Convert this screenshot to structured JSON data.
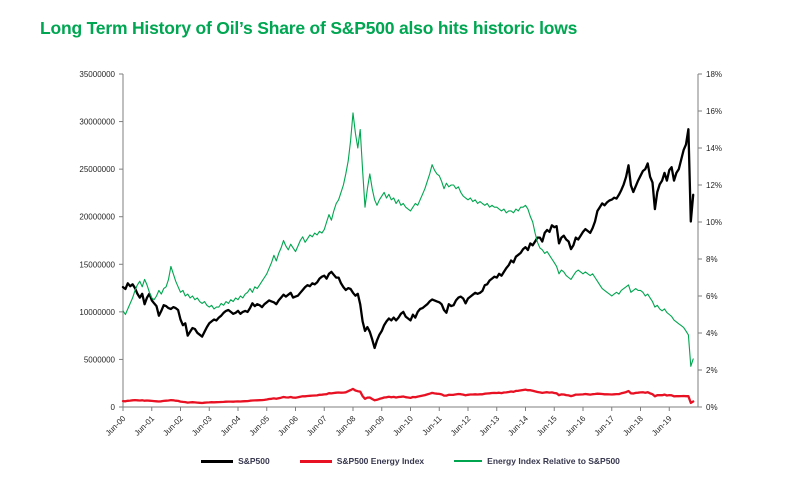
{
  "title": {
    "text": "Long Term History of Oil’s Share of S&P500 also hits historic lows",
    "color": "#00a651"
  },
  "chart_data": {
    "type": "line",
    "title": "Long Term History of Oil’s Share of S&P500 also hits historic lows",
    "x_tick_labels": [
      "Jun-00",
      "Jun-01",
      "Jun-02",
      "Jun-03",
      "Jun-04",
      "Jun-05",
      "Jun-06",
      "Jun-07",
      "Jun-08",
      "Jun-09",
      "Jun-10",
      "Jun-11",
      "Jun-12",
      "Jun-13",
      "Jun-14",
      "Jun-15",
      "Jun-16",
      "Jun-17",
      "Jun-18",
      "Jun-19"
    ],
    "x_frequency": "monthly",
    "x_slots": 240,
    "grid": false,
    "legend_position": "bottom",
    "left_axis": {
      "min": 0,
      "max": 35000000,
      "tick_step": 5000000,
      "tick_labels": [
        "0",
        "5000000",
        "10000000",
        "15000000",
        "20000000",
        "25000000",
        "30000000",
        "35000000"
      ]
    },
    "right_axis": {
      "min": 0,
      "max": 18,
      "tick_step": 2,
      "tick_labels": [
        "0%",
        "2%",
        "4%",
        "6%",
        "8%",
        "10%",
        "12%",
        "14%",
        "16%",
        "18%"
      ]
    },
    "series": [
      {
        "name": "S&P500",
        "axis": "left",
        "color": "#000000",
        "line_width": 2.3,
        "value_scale": 1000000,
        "values": [
          12.6,
          12.4,
          13.0,
          12.7,
          12.9,
          12.5,
          11.9,
          11.5,
          11.9,
          10.8,
          11.5,
          11.9,
          11.2,
          10.9,
          10.6,
          9.6,
          10.1,
          10.7,
          10.6,
          10.4,
          10.3,
          10.5,
          10.4,
          10.2,
          9.2,
          8.6,
          8.8,
          7.5,
          7.9,
          8.3,
          8.2,
          7.8,
          7.6,
          7.4,
          7.9,
          8.4,
          8.8,
          9.0,
          9.2,
          9.1,
          9.4,
          9.6,
          9.9,
          10.1,
          10.2,
          10.0,
          9.8,
          9.9,
          10.1,
          9.8,
          10.0,
          10.1,
          10.0,
          10.4,
          10.9,
          10.6,
          10.8,
          10.7,
          10.5,
          10.8,
          11.0,
          11.2,
          11.1,
          11.0,
          10.8,
          11.2,
          11.5,
          11.8,
          11.6,
          11.8,
          12.0,
          11.5,
          11.6,
          11.7,
          12.0,
          12.3,
          12.6,
          12.8,
          12.7,
          13.0,
          12.9,
          13.1,
          13.5,
          13.7,
          13.8,
          13.5,
          14.0,
          14.2,
          13.9,
          13.6,
          13.6,
          13.0,
          12.6,
          12.3,
          12.5,
          12.4,
          12.0,
          11.7,
          11.9,
          10.8,
          9.0,
          8.0,
          8.4,
          7.9,
          7.1,
          6.2,
          7.0,
          7.6,
          8.0,
          8.6,
          9.0,
          9.3,
          9.1,
          9.4,
          9.1,
          9.4,
          9.8,
          10.0,
          9.5,
          9.3,
          9.1,
          9.7,
          9.4,
          10.0,
          10.3,
          10.4,
          10.6,
          10.8,
          11.1,
          11.3,
          11.2,
          11.1,
          11.0,
          10.8,
          10.2,
          9.9,
          10.8,
          10.6,
          10.7,
          11.2,
          11.5,
          11.6,
          11.4,
          10.9,
          11.4,
          11.6,
          11.8,
          12.0,
          11.9,
          12.0,
          12.2,
          12.8,
          12.9,
          13.3,
          13.5,
          13.7,
          13.6,
          14.0,
          13.8,
          14.2,
          14.6,
          14.9,
          15.4,
          15.2,
          15.8,
          16.0,
          16.2,
          16.6,
          16.8,
          16.5,
          17.2,
          17.0,
          17.4,
          17.8,
          17.8,
          17.4,
          18.3,
          18.6,
          18.4,
          19.1,
          18.9,
          19.0,
          17.2,
          17.8,
          18.0,
          17.6,
          17.4,
          16.6,
          17.0,
          17.8,
          17.6,
          18.0,
          18.4,
          18.7,
          18.5,
          18.3,
          18.8,
          19.5,
          20.6,
          21.0,
          21.4,
          21.2,
          21.5,
          21.7,
          21.8,
          22.0,
          21.9,
          22.3,
          22.8,
          23.4,
          24.2,
          25.4,
          23.3,
          22.6,
          23.2,
          23.8,
          24.3,
          24.8,
          25.0,
          25.6,
          24.2,
          23.6,
          20.8,
          22.6,
          23.4,
          23.8,
          24.6,
          23.8,
          24.9,
          25.2,
          23.8,
          24.6,
          25.0,
          26.0,
          27.0,
          27.6,
          29.2,
          19.5,
          22.3
        ]
      },
      {
        "name": "S&P500 Energy Index",
        "axis": "left",
        "color": "#e81123",
        "line_width": 2.3,
        "value_scale": 1000000,
        "values": [
          0.62,
          0.6,
          0.65,
          0.67,
          0.7,
          0.72,
          0.7,
          0.68,
          0.7,
          0.66,
          0.68,
          0.66,
          0.64,
          0.62,
          0.6,
          0.58,
          0.6,
          0.64,
          0.66,
          0.68,
          0.72,
          0.7,
          0.66,
          0.64,
          0.57,
          0.54,
          0.52,
          0.46,
          0.48,
          0.5,
          0.48,
          0.46,
          0.44,
          0.42,
          0.45,
          0.47,
          0.48,
          0.5,
          0.49,
          0.5,
          0.51,
          0.53,
          0.54,
          0.56,
          0.57,
          0.57,
          0.56,
          0.58,
          0.59,
          0.58,
          0.6,
          0.61,
          0.62,
          0.66,
          0.68,
          0.69,
          0.7,
          0.71,
          0.72,
          0.75,
          0.79,
          0.84,
          0.86,
          0.9,
          0.86,
          0.92,
          0.98,
          1.05,
          1.01,
          1.0,
          1.05,
          0.99,
          0.98,
          1.02,
          1.08,
          1.12,
          1.12,
          1.16,
          1.18,
          1.2,
          1.21,
          1.22,
          1.28,
          1.29,
          1.32,
          1.35,
          1.45,
          1.43,
          1.47,
          1.5,
          1.52,
          1.5,
          1.51,
          1.55,
          1.66,
          1.78,
          1.9,
          1.73,
          1.66,
          1.62,
          1.15,
          0.86,
          0.99,
          1.0,
          0.84,
          0.7,
          0.76,
          0.85,
          0.91,
          1.0,
          1.02,
          1.07,
          1.02,
          1.06,
          1.0,
          1.05,
          1.07,
          1.1,
          1.03,
          1.0,
          0.96,
          1.05,
          1.03,
          1.09,
          1.15,
          1.2,
          1.25,
          1.32,
          1.4,
          1.48,
          1.43,
          1.4,
          1.38,
          1.32,
          1.2,
          1.2,
          1.28,
          1.27,
          1.28,
          1.32,
          1.37,
          1.35,
          1.3,
          1.23,
          1.28,
          1.31,
          1.31,
          1.34,
          1.31,
          1.33,
          1.34,
          1.4,
          1.42,
          1.44,
          1.47,
          1.48,
          1.47,
          1.5,
          1.46,
          1.52,
          1.53,
          1.58,
          1.63,
          1.6,
          1.69,
          1.7,
          1.75,
          1.79,
          1.83,
          1.77,
          1.77,
          1.7,
          1.64,
          1.58,
          1.53,
          1.48,
          1.52,
          1.56,
          1.51,
          1.53,
          1.47,
          1.44,
          1.24,
          1.32,
          1.31,
          1.25,
          1.22,
          1.15,
          1.21,
          1.3,
          1.3,
          1.31,
          1.32,
          1.37,
          1.33,
          1.3,
          1.35,
          1.37,
          1.4,
          1.39,
          1.37,
          1.34,
          1.33,
          1.32,
          1.31,
          1.34,
          1.36,
          1.36,
          1.44,
          1.5,
          1.57,
          1.68,
          1.44,
          1.42,
          1.48,
          1.5,
          1.53,
          1.54,
          1.5,
          1.56,
          1.43,
          1.35,
          1.12,
          1.24,
          1.24,
          1.24,
          1.3,
          1.21,
          1.25,
          1.23,
          1.12,
          1.13,
          1.13,
          1.15,
          1.16,
          1.13,
          1.14,
          0.43,
          0.58
        ]
      },
      {
        "name": "Energy Index Relative to S&P500",
        "axis": "right",
        "color": "#00a64f",
        "line_width": 1.1,
        "unit": "%",
        "values": [
          5.2,
          5.0,
          5.3,
          5.6,
          5.9,
          6.3,
          6.6,
          6.8,
          6.5,
          6.9,
          6.6,
          6.2,
          5.9,
          5.8,
          6.0,
          6.3,
          6.1,
          6.4,
          6.5,
          6.9,
          7.6,
          7.2,
          6.8,
          6.5,
          6.2,
          6.3,
          6.0,
          6.1,
          5.9,
          6.0,
          5.8,
          5.9,
          5.7,
          5.6,
          5.7,
          5.5,
          5.4,
          5.5,
          5.3,
          5.4,
          5.4,
          5.6,
          5.5,
          5.7,
          5.6,
          5.8,
          5.7,
          5.9,
          5.8,
          6.0,
          5.9,
          6.1,
          6.2,
          6.4,
          6.2,
          6.5,
          6.4,
          6.6,
          6.8,
          7.0,
          7.2,
          7.5,
          7.8,
          8.2,
          7.9,
          8.3,
          8.6,
          9.0,
          8.7,
          8.5,
          8.8,
          8.6,
          8.4,
          8.7,
          9.0,
          9.2,
          8.9,
          9.1,
          9.3,
          9.2,
          9.4,
          9.3,
          9.5,
          9.4,
          9.6,
          10.0,
          10.4,
          10.1,
          10.6,
          11.0,
          11.2,
          11.6,
          12.0,
          12.6,
          13.3,
          14.4,
          15.9,
          14.8,
          14.0,
          15.0,
          12.8,
          10.8,
          11.8,
          12.6,
          11.8,
          11.2,
          10.9,
          11.2,
          11.4,
          11.6,
          11.3,
          11.5,
          11.2,
          11.3,
          11.0,
          11.2,
          10.9,
          11.0,
          10.8,
          10.7,
          10.6,
          10.8,
          11.0,
          10.9,
          11.2,
          11.5,
          11.8,
          12.2,
          12.6,
          13.1,
          12.8,
          12.6,
          12.5,
          12.2,
          11.8,
          12.1,
          11.9,
          12.0,
          12.0,
          11.8,
          11.9,
          11.6,
          11.4,
          11.3,
          11.2,
          11.3,
          11.1,
          11.2,
          11.0,
          11.1,
          11.0,
          10.9,
          11.0,
          10.8,
          10.9,
          10.8,
          10.8,
          10.7,
          10.6,
          10.7,
          10.5,
          10.6,
          10.6,
          10.5,
          10.7,
          10.6,
          10.8,
          10.8,
          10.9,
          10.7,
          10.3,
          10.0,
          9.4,
          8.9,
          8.6,
          8.5,
          8.3,
          8.4,
          8.2,
          8.0,
          7.8,
          7.6,
          7.2,
          7.4,
          7.3,
          7.1,
          7.0,
          6.9,
          7.1,
          7.3,
          7.4,
          7.3,
          7.2,
          7.3,
          7.2,
          7.1,
          7.2,
          7.0,
          6.8,
          6.6,
          6.4,
          6.3,
          6.2,
          6.1,
          6.0,
          6.1,
          6.2,
          6.1,
          6.3,
          6.4,
          6.5,
          6.6,
          6.2,
          6.3,
          6.4,
          6.3,
          6.3,
          6.2,
          6.0,
          6.1,
          5.9,
          5.7,
          5.4,
          5.5,
          5.3,
          5.2,
          5.3,
          5.1,
          5.0,
          4.9,
          4.7,
          4.6,
          4.5,
          4.4,
          4.3,
          4.1,
          3.9,
          2.2,
          2.6
        ]
      }
    ]
  },
  "legend": {
    "items": [
      {
        "label": "S&P500",
        "color": "#000000",
        "thick": true
      },
      {
        "label": "S&P500 Energy Index",
        "color": "#e81123",
        "thick": true
      },
      {
        "label": "Energy Index Relative to S&P500",
        "color": "#00a64f",
        "thick": false
      }
    ]
  }
}
